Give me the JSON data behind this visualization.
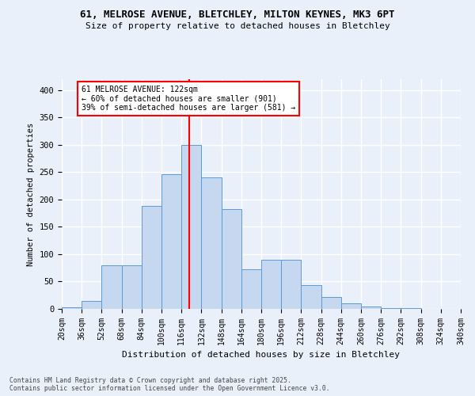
{
  "title_line1": "61, MELROSE AVENUE, BLETCHLEY, MILTON KEYNES, MK3 6PT",
  "title_line2": "Size of property relative to detached houses in Bletchley",
  "xlabel": "Distribution of detached houses by size in Bletchley",
  "ylabel": "Number of detached properties",
  "bin_labels": [
    "20sqm",
    "36sqm",
    "52sqm",
    "68sqm",
    "84sqm",
    "100sqm",
    "116sqm",
    "132sqm",
    "148sqm",
    "164sqm",
    "180sqm",
    "196sqm",
    "212sqm",
    "228sqm",
    "244sqm",
    "260sqm",
    "276sqm",
    "292sqm",
    "308sqm",
    "324sqm",
    "340sqm"
  ],
  "bin_edges": [
    20,
    36,
    52,
    68,
    84,
    100,
    116,
    132,
    148,
    164,
    180,
    196,
    212,
    228,
    244,
    260,
    276,
    292,
    308,
    324,
    340
  ],
  "bar_heights": [
    3,
    15,
    80,
    80,
    188,
    246,
    300,
    240,
    183,
    72,
    90,
    90,
    44,
    22,
    10,
    5,
    2,
    1,
    0,
    0
  ],
  "bar_color": "#c5d8f0",
  "bar_edge_color": "#5b9bd5",
  "vline_x": 122,
  "vline_color": "red",
  "annotation_text": "61 MELROSE AVENUE: 122sqm\n← 60% of detached houses are smaller (901)\n39% of semi-detached houses are larger (581) →",
  "annotation_box_facecolor": "white",
  "annotation_box_edgecolor": "red",
  "ylim": [
    0,
    420
  ],
  "yticks": [
    0,
    50,
    100,
    150,
    200,
    250,
    300,
    350,
    400
  ],
  "bg_color": "#eaf0fa",
  "grid_color": "white",
  "footer_line1": "Contains HM Land Registry data © Crown copyright and database right 2025.",
  "footer_line2": "Contains public sector information licensed under the Open Government Licence v3.0."
}
